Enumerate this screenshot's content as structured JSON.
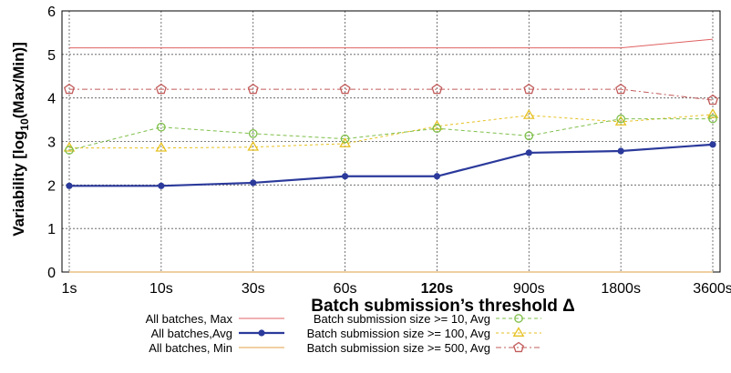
{
  "chart_data": {
    "type": "line",
    "xlabel": "Batch submission’s threshold  Δ",
    "ylabel_parts": [
      "Variability [log",
      "10",
      "(Max/Min)]"
    ],
    "categories": [
      "1s",
      "10s",
      "30s",
      "60s",
      "120s",
      "900s",
      "1800s",
      "3600s"
    ],
    "bold_category": "120s",
    "ylim": [
      0,
      6
    ],
    "yticks": [
      0,
      1,
      2,
      3,
      4,
      5,
      6
    ],
    "grid": true,
    "legend_position": "bottom",
    "series": [
      {
        "name": "All batches, Max",
        "values": [
          5.15,
          5.15,
          5.15,
          5.15,
          5.15,
          5.15,
          5.15,
          5.35
        ],
        "color": "#e06060",
        "marker": "none",
        "dash": "none",
        "width": 1
      },
      {
        "name": "All batches,Avg",
        "values": [
          1.98,
          1.98,
          2.05,
          2.2,
          2.2,
          2.74,
          2.78,
          2.93
        ],
        "color": "#2b3a9b",
        "marker": "dot",
        "dash": "none",
        "width": 2.2
      },
      {
        "name": "All batches, Min",
        "values": [
          0,
          0,
          0,
          0,
          0,
          0,
          0,
          0
        ],
        "color": "#e8b26a",
        "marker": "none",
        "dash": "none",
        "width": 1.2
      },
      {
        "name": "Batch submission size >= 10, Avg",
        "values": [
          2.8,
          3.33,
          3.18,
          3.06,
          3.3,
          3.13,
          3.52,
          3.52
        ],
        "color": "#7fbf4a",
        "marker": "circle",
        "dash": "4,3",
        "width": 1
      },
      {
        "name": "Batch submission size >= 100, Avg",
        "values": [
          2.85,
          2.85,
          2.87,
          2.95,
          3.35,
          3.6,
          3.45,
          3.62
        ],
        "color": "#e6c020",
        "marker": "triangle",
        "dash": "3,3",
        "width": 1
      },
      {
        "name": "Batch submission size >= 500, Avg",
        "values": [
          4.2,
          4.2,
          4.2,
          4.2,
          4.2,
          4.2,
          4.2,
          3.95
        ],
        "color": "#c25b5b",
        "marker": "pentagon",
        "dash": "6,3,2,3",
        "width": 1
      }
    ]
  }
}
